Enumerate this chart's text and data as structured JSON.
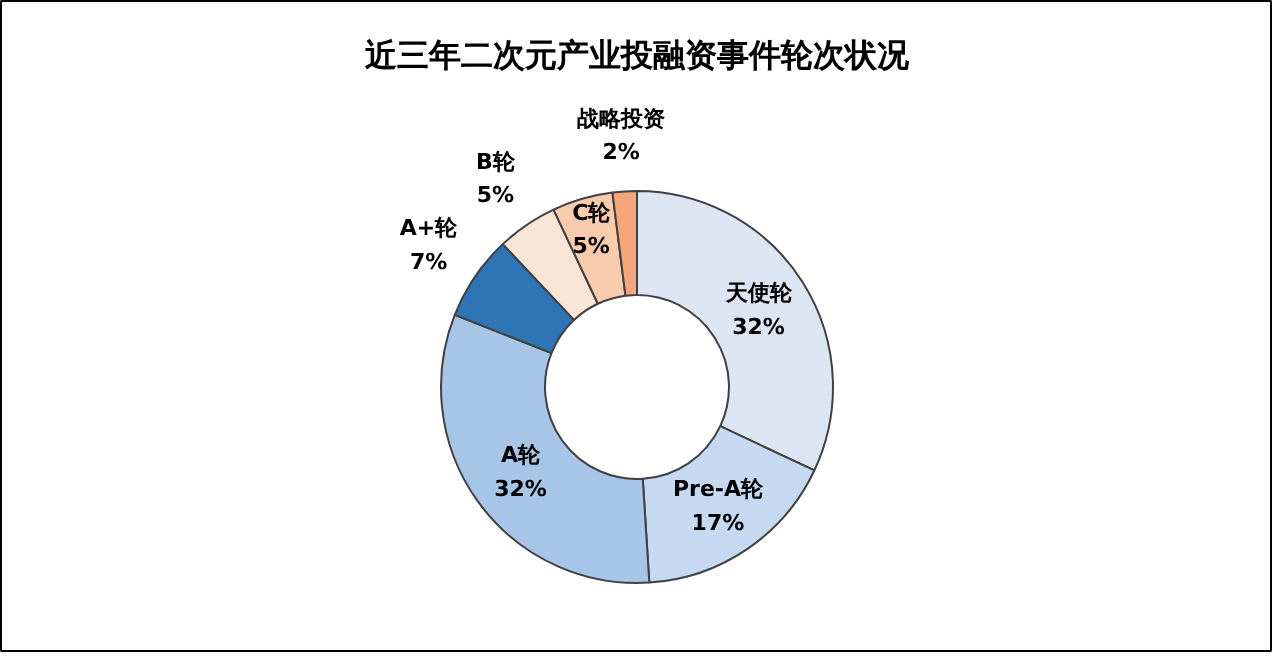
{
  "chart_data": {
    "type": "donut",
    "title": "近三年二次元产业投融资事件轮次状况",
    "categories": [
      "天使轮",
      "Pre-A轮",
      "A轮",
      "A+轮",
      "B轮",
      "C轮",
      "战略投资"
    ],
    "values": [
      32,
      17,
      32,
      7,
      5,
      5,
      2
    ],
    "value_labels": [
      "32%",
      "17%",
      "32%",
      "7%",
      "5%",
      "5%",
      "2%"
    ],
    "colors": [
      "#dce6f2",
      "#c5d9f1",
      "#a7c5e6",
      "#2e75b6",
      "#fbe5d6",
      "#f8cbad",
      "#f4a67a"
    ]
  }
}
